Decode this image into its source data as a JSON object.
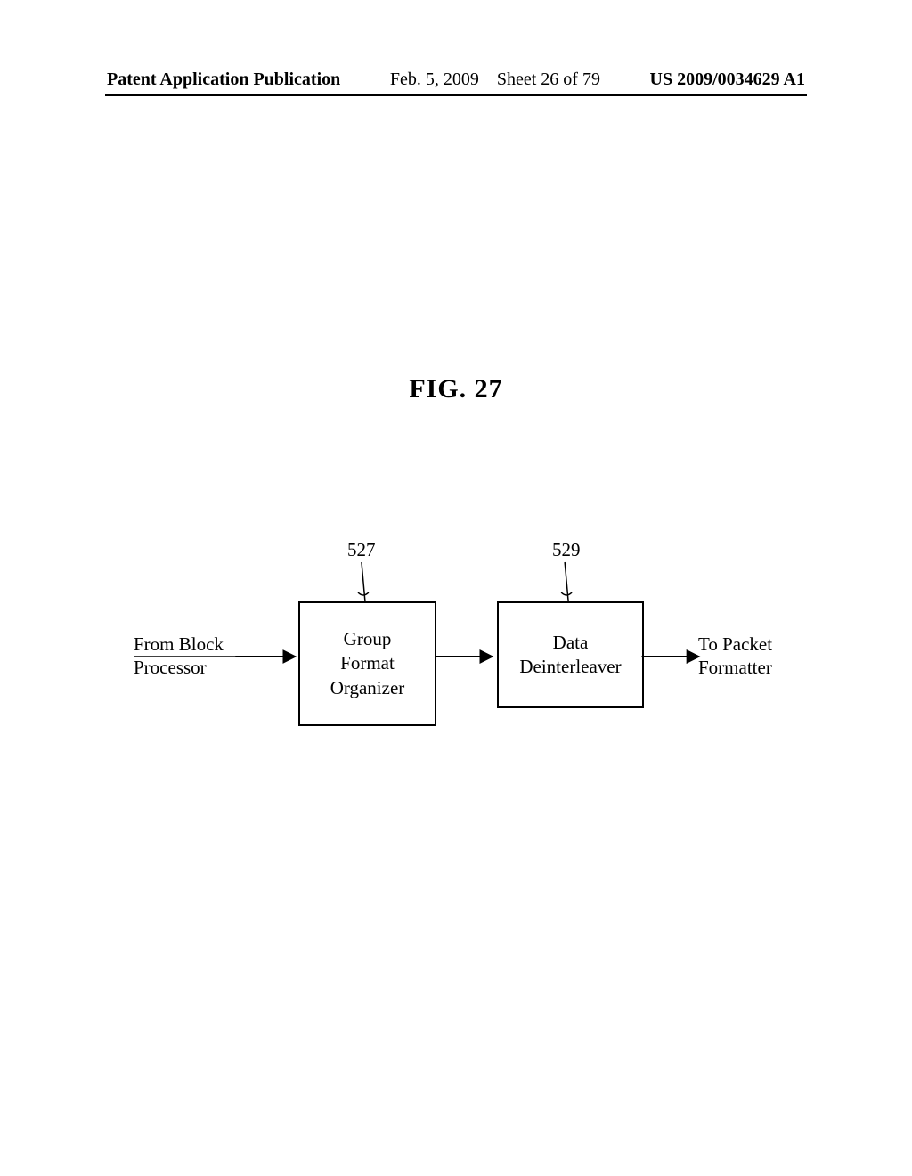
{
  "header": {
    "left": "Patent Application Publication",
    "center_date": "Feb. 5, 2009",
    "center_sheet": "Sheet 26 of 79",
    "right": "US 2009/0034629 A1"
  },
  "figure": {
    "title": "FIG. 27"
  },
  "diagram": {
    "type": "flowchart",
    "input_label": "From Block\nProcessor",
    "output_label": "To Packet\nFormatter",
    "nodes": [
      {
        "id": "group-format-organizer",
        "ref": "527",
        "label": "Group\nFormat\nOrganizer"
      },
      {
        "id": "data-deinterleaver",
        "ref": "529",
        "label": "Data\nDeinterleaver"
      }
    ],
    "colors": {
      "stroke": "#000000",
      "background": "#ffffff",
      "text": "#000000"
    },
    "stroke_width": 2,
    "font_family": "Times New Roman",
    "font_size_pt": 16
  }
}
